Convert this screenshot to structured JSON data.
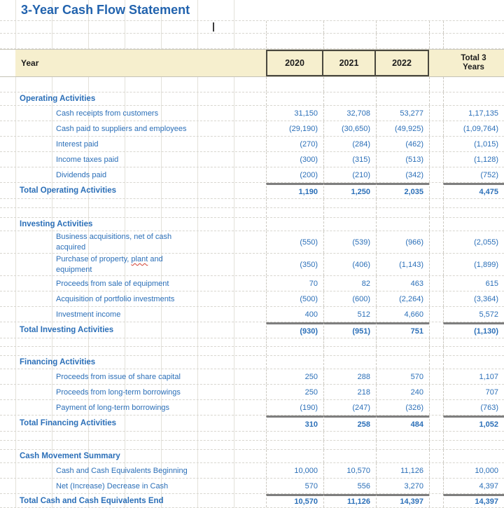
{
  "title": "3-Year Cash Flow Statement",
  "header": {
    "row_label": "Year",
    "years": [
      "2020",
      "2021",
      "2022"
    ],
    "total_label": "Total 3 Years"
  },
  "colors": {
    "accent_blue": "#2b6fb8",
    "title_blue": "#2263ae",
    "header_fill": "#f6efce",
    "year_cell_border": "#4a483e",
    "total_rule_gray": "#7e7e7e",
    "misspell_underline_red": "#d23f31"
  },
  "sections": [
    {
      "header": "Operating Activities",
      "rows": [
        {
          "label": "Cash receipts from customers",
          "values": [
            "31,150",
            "32,708",
            "53,277",
            "1,17,135"
          ]
        },
        {
          "label": "Cash paid to suppliers and employees",
          "values": [
            "(29,190)",
            "(30,650)",
            "(49,925)",
            "(1,09,764)"
          ]
        },
        {
          "label": "Interest paid",
          "values": [
            "(270)",
            "(284)",
            "(462)",
            "(1,015)"
          ]
        },
        {
          "label": "Income taxes paid",
          "values": [
            "(300)",
            "(315)",
            "(513)",
            "(1,128)"
          ]
        },
        {
          "label": "Dividends paid",
          "values": [
            "(200)",
            "(210)",
            "(342)",
            "(752)"
          ]
        }
      ],
      "total_label": "Total Operating Activities",
      "total_values": [
        "1,190",
        "1,250",
        "2,035",
        "4,475"
      ]
    },
    {
      "header": "Investing Activities",
      "rows": [
        {
          "label": "Business acquisitions, net of cash acquired",
          "values": [
            "(550)",
            "(539)",
            "(966)",
            "(2,055)"
          ]
        },
        {
          "label_pre": "Purchase of property, ",
          "label_word": "plant",
          "label_post": " and equipment",
          "values": [
            "(350)",
            "(406)",
            "(1,143)",
            "(1,899)"
          ]
        },
        {
          "label": "Proceeds from sale of equipment",
          "values": [
            "70",
            "82",
            "463",
            "615"
          ]
        },
        {
          "label": "Acquisition of portfolio investments",
          "values": [
            "(500)",
            "(600)",
            "(2,264)",
            "(3,364)"
          ]
        },
        {
          "label": "Investment income",
          "values": [
            "400",
            "512",
            "4,660",
            "5,572"
          ]
        }
      ],
      "total_label": "Total Investing Activities",
      "total_values": [
        "(930)",
        "(951)",
        "751",
        "(1,130)"
      ]
    },
    {
      "header": "Financing Activities",
      "rows": [
        {
          "label": "Proceeds from issue of share capital",
          "values": [
            "250",
            "288",
            "570",
            "1,107"
          ]
        },
        {
          "label": "Proceeds from long-term borrowings",
          "values": [
            "250",
            "218",
            "240",
            "707"
          ]
        },
        {
          "label": "Payment of long-term borrowings",
          "values": [
            "(190)",
            "(247)",
            "(326)",
            "(763)"
          ]
        }
      ],
      "total_label": "Total Financing Activities",
      "total_values": [
        "310",
        "258",
        "484",
        "1,052"
      ]
    },
    {
      "header": "Cash Movement Summary",
      "rows": [
        {
          "label": "Cash and Cash Equivalents Beginning",
          "values": [
            "10,000",
            "10,570",
            "11,126",
            "10,000"
          ]
        },
        {
          "label": "Net (Increase) Decrease in Cash",
          "values": [
            "570",
            "556",
            "3,270",
            "4,397"
          ]
        }
      ],
      "total_label": "Total Cash and Cash Equivalents End",
      "total_values": [
        "10,570",
        "11,126",
        "14,397",
        "14,397"
      ]
    }
  ]
}
